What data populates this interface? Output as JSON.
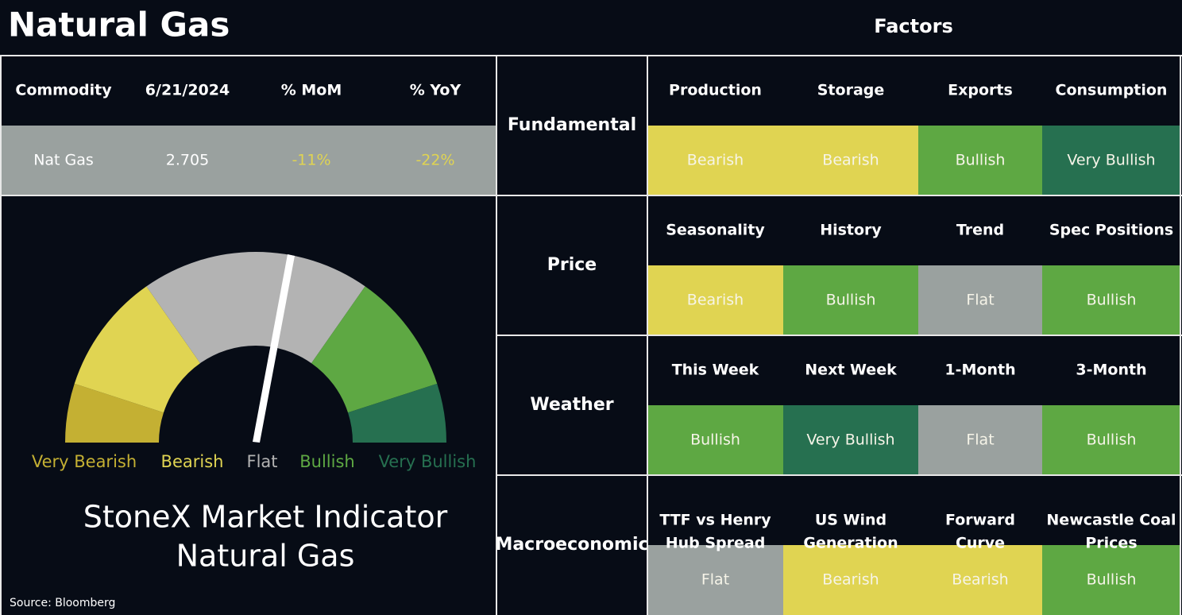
{
  "header": {
    "title": "Natural Gas",
    "factors_title": "Factors"
  },
  "commodity_table": {
    "headers": [
      "Commodity",
      "6/21/2024",
      "% MoM",
      "% YoY"
    ],
    "row": [
      "Nat Gas",
      "2.705",
      "-11%",
      "-22%"
    ],
    "row_colors": [
      "#ffffff",
      "#ffffff",
      "#e0d452",
      "#e0d452"
    ],
    "row_background": "#9aa19f"
  },
  "gauge": {
    "segments": [
      {
        "label": "Very Bearish",
        "color": "#c4b033"
      },
      {
        "label": "Bearish",
        "color": "#e0d452"
      },
      {
        "label": "Flat",
        "color": "#b3b3b3"
      },
      {
        "label": "Bullish",
        "color": "#5ea843"
      },
      {
        "label": "Very Bullish",
        "color": "#267050"
      }
    ]
  },
  "indicator": {
    "title": "StoneX Market Indicator",
    "subtitle": "Natural Gas"
  },
  "source": "Source: Bloomberg",
  "groups": [
    {
      "name": "Fundamental",
      "factors": [
        {
          "name": "Production",
          "status": "Bearish",
          "color": "#e0d452"
        },
        {
          "name": "Storage",
          "status": "Bearish",
          "color": "#e0d452"
        },
        {
          "name": "Exports",
          "status": "Bullish",
          "color": "#5ea843"
        },
        {
          "name": "Consumption",
          "status": "Very Bullish",
          "color": "#267050"
        }
      ]
    },
    {
      "name": "Price",
      "factors": [
        {
          "name": "Seasonality",
          "status": "Bearish",
          "color": "#e0d452"
        },
        {
          "name": "History",
          "status": "Bullish",
          "color": "#5ea843"
        },
        {
          "name": "Trend",
          "status": "Flat",
          "color": "#9aa19f"
        },
        {
          "name": "Spec Positions",
          "status": "Bullish",
          "color": "#5ea843"
        }
      ]
    },
    {
      "name": "Weather",
      "factors": [
        {
          "name": "This Week",
          "status": "Bullish",
          "color": "#5ea843"
        },
        {
          "name": "Next Week",
          "status": "Very Bullish",
          "color": "#267050"
        },
        {
          "name": "1-Month",
          "status": "Flat",
          "color": "#9aa19f"
        },
        {
          "name": "3-Month",
          "status": "Bullish",
          "color": "#5ea843"
        }
      ]
    },
    {
      "name": "Macroeconomic",
      "factors": [
        {
          "name": [
            "TTF vs Henry",
            "Hub Spread"
          ],
          "status": "Flat",
          "color": "#9aa19f"
        },
        {
          "name": [
            "US Wind",
            "Generation"
          ],
          "status": "Bearish",
          "color": "#e0d452"
        },
        {
          "name": [
            "Forward",
            "Curve"
          ],
          "status": "Bearish",
          "color": "#e0d452"
        },
        {
          "name": [
            "Newcastle Coal",
            "Prices"
          ],
          "status": "Bullish",
          "color": "#5ea843"
        }
      ]
    }
  ]
}
